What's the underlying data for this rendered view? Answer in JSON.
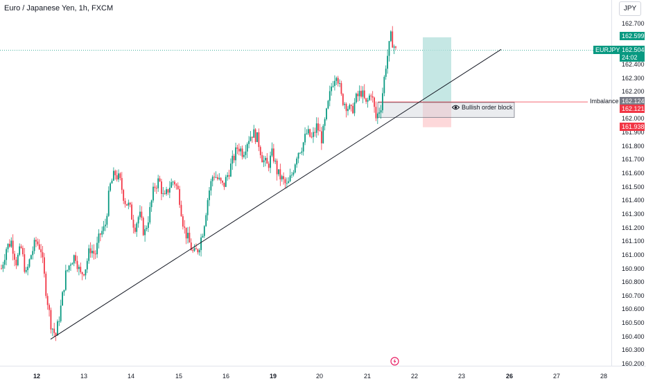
{
  "header": {
    "title": "Euro / Japanese Yen, 1h, FXCM",
    "currency_button": "JPY"
  },
  "price_axis": {
    "ticks": [
      "162.700",
      "162.600",
      "162.500",
      "162.400",
      "162.300",
      "162.200",
      "162.100",
      "162.000",
      "161.900",
      "161.800",
      "161.700",
      "161.600",
      "161.500",
      "161.400",
      "161.300",
      "161.200",
      "161.100",
      "161.000",
      "160.900",
      "160.800",
      "160.700",
      "160.600",
      "160.500",
      "160.400",
      "160.300",
      "160.200"
    ],
    "labels": {
      "tp": {
        "text": "162.599",
        "color": "#089981"
      },
      "current": {
        "text": "162.504",
        "countdown": "24:02",
        "color": "#089981"
      },
      "symbol": {
        "text": "EURJPY",
        "color": "#089981"
      },
      "imbalance_value": {
        "text": "162.124",
        "color": "#787b86"
      },
      "entry": {
        "text": "162.121",
        "color": "#f23645"
      },
      "stop": {
        "text": "161.938",
        "color": "#f23645"
      }
    }
  },
  "time_axis": {
    "ticks": [
      {
        "label": "12",
        "bold": true
      },
      {
        "label": "13",
        "bold": false
      },
      {
        "label": "14",
        "bold": false
      },
      {
        "label": "15",
        "bold": false
      },
      {
        "label": "16",
        "bold": false
      },
      {
        "label": "19",
        "bold": true
      },
      {
        "label": "20",
        "bold": false
      },
      {
        "label": "21",
        "bold": false
      },
      {
        "label": "22",
        "bold": false
      },
      {
        "label": "23",
        "bold": false
      },
      {
        "label": "26",
        "bold": true
      },
      {
        "label": "27",
        "bold": false
      },
      {
        "label": "28",
        "bold": false
      }
    ]
  },
  "annotations": {
    "imbalance": "Imbalance",
    "order_block": "Bullish order block",
    "order_block_icon": "eye-icon"
  },
  "colors": {
    "up": "#089981",
    "down": "#f23645",
    "trendline": "#131722",
    "profit_zone": "#b2dfdb",
    "loss_zone": "#fccbcd"
  },
  "chart_data": {
    "type": "candlestick",
    "symbol": "EURJPY",
    "interval": "1h",
    "ylim": [
      160.16,
      162.76
    ],
    "x_dates": [
      "12",
      "13",
      "14",
      "15",
      "16",
      "19",
      "20",
      "21",
      "22",
      "23",
      "26",
      "27",
      "28"
    ],
    "trendline": {
      "from": {
        "date": "12",
        "price": 160.38
      },
      "to": {
        "date": "26",
        "price": 162.51
      }
    },
    "position": {
      "entry": 162.121,
      "target": 162.599,
      "stop": 161.938
    },
    "imbalance_level": 162.124,
    "order_block": {
      "top": 162.12,
      "bottom": 162.01
    },
    "path": [
      160.9,
      161.05,
      161.1,
      160.95,
      161.05,
      160.85,
      161.0,
      161.1,
      161.05,
      160.75,
      160.5,
      160.4,
      160.6,
      160.85,
      160.95,
      161.0,
      160.85,
      160.9,
      161.05,
      161.0,
      161.15,
      161.2,
      161.5,
      161.6,
      161.55,
      161.4,
      161.35,
      161.2,
      161.3,
      161.15,
      161.3,
      161.5,
      161.55,
      161.4,
      161.5,
      161.55,
      161.45,
      161.2,
      161.1,
      161.0,
      161.05,
      161.2,
      161.45,
      161.6,
      161.55,
      161.5,
      161.6,
      161.7,
      161.8,
      161.75,
      161.85,
      161.9,
      161.85,
      161.7,
      161.65,
      161.75,
      161.6,
      161.55,
      161.5,
      161.6,
      161.75,
      161.8,
      161.9,
      161.85,
      161.95,
      161.85,
      162.05,
      162.25,
      162.35,
      162.15,
      162.1,
      162.05,
      162.15,
      162.2,
      162.1,
      162.2,
      162.0,
      162.1,
      162.4,
      162.6,
      162.5
    ]
  }
}
